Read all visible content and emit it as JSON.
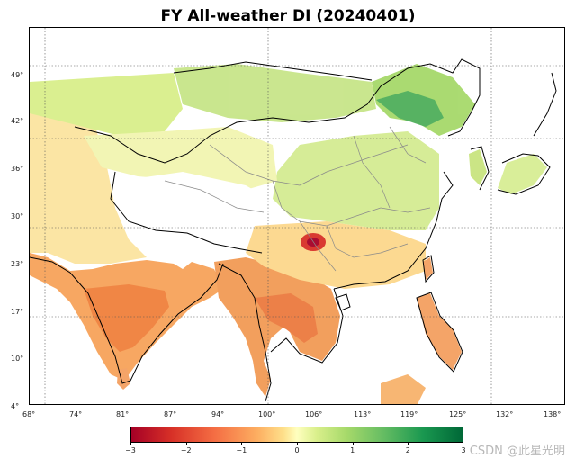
{
  "title": "FY All-weather DI (20240401)",
  "map": {
    "projection": "PlateCarree",
    "lon_range": [
      68,
      140
    ],
    "lat_range": [
      4,
      55
    ],
    "lon_ticks": [
      "68°",
      "74°",
      "81°",
      "87°",
      "94°",
      "100°",
      "106°",
      "113°",
      "119°",
      "125°",
      "132°",
      "138°"
    ],
    "lat_ticks": [
      "49°",
      "42°",
      "36°",
      "30°",
      "23°",
      "17°",
      "10°",
      "4°"
    ],
    "gridlines": "dotted",
    "colormap": "RdYlGn",
    "colors": {
      "dry_extreme": "#a50026",
      "dry": "#f46d43",
      "neutral": "#ffffbf",
      "wet": "#66bd63",
      "wet_extreme": "#006837",
      "nodata": "#ffffff",
      "borders": "#000000",
      "provinces": "#808080"
    }
  },
  "colorbar": {
    "min": -3,
    "max": 3,
    "tick_labels": [
      "−3",
      "−2",
      "−1",
      "0",
      "1",
      "2",
      "3"
    ]
  },
  "watermark": "CSDN @此星光明"
}
